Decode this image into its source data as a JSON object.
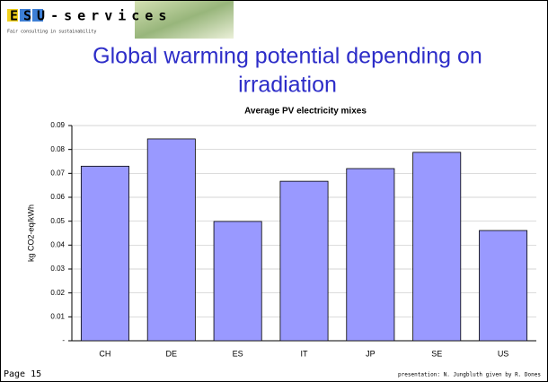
{
  "logo": "ESU-services",
  "tagline": "Fair consulting in sustainability",
  "slide_title": [
    "Global warming potential depending on",
    "irradiation"
  ],
  "footer": {
    "page": "Page 15",
    "credit": "presentation: N. Jungbluth given by R. Dones"
  },
  "chart_data": {
    "type": "bar",
    "title": "Average PV electricity mixes",
    "y_label": "kg CO2-eq/kWh",
    "categories": [
      "CH",
      "DE",
      "ES",
      "IT",
      "JP",
      "SE",
      "US"
    ],
    "values": [
      0.073,
      0.0844,
      0.0499,
      0.0667,
      0.072,
      0.0788,
      0.0461
    ],
    "color": "#9999ff",
    "ylim": [
      0,
      0.09
    ],
    "yticks": [
      {
        "value": 0,
        "label": "-"
      },
      0.01,
      0.02,
      0.03,
      0.04,
      0.05,
      0.06,
      0.07,
      0.08,
      0.09
    ],
    "grid": true
  }
}
